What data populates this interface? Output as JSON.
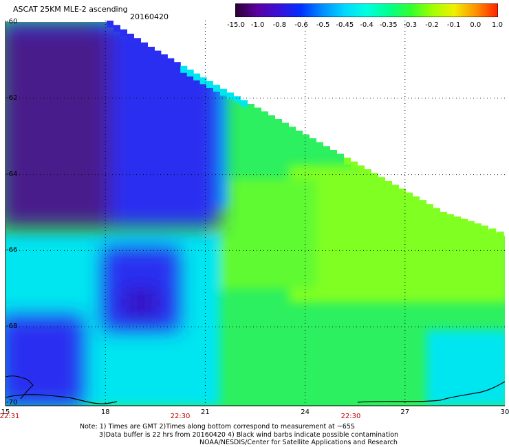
{
  "header": {
    "title": "ASCAT 25KM MLE-2 ascending",
    "date": "20160420"
  },
  "colorbar": {
    "labels": [
      "-15.0",
      "-1.0",
      "-0.8",
      "-0.6",
      "-0.5",
      "-0.45",
      "-0.4",
      "-0.35",
      "-0.3",
      "-0.2",
      "-0.1",
      "0.0",
      "1.0"
    ],
    "colors": [
      "#2a0030",
      "#5a00a0",
      "#3a10d8",
      "#0030ff",
      "#0090ff",
      "#00d8ff",
      "#00ffe0",
      "#00ff90",
      "#30ff30",
      "#a0ff00",
      "#f0f000",
      "#ff9000",
      "#ff2000"
    ]
  },
  "map": {
    "lat_labels": [
      "-60",
      "-62",
      "-64",
      "-66",
      "-68",
      "-70"
    ],
    "lon_labels": [
      "15",
      "18",
      "21",
      "24",
      "27",
      "30"
    ],
    "time_labels": [
      "22:31",
      "22:30",
      "22:30"
    ],
    "colors": {
      "deep_purple": "#4a1a8c",
      "blue": "#2a2ef0",
      "cyan": "#00e6f0",
      "green": "#2cf060",
      "lime": "#80ff20",
      "coast": "#000000",
      "missing": "#ffffff"
    }
  },
  "notes": {
    "line1": "Note: 1) Times are GMT 2)Times along bottom correspond to measurement at ~65S",
    "line2": "3)Data buffer is 22 hrs from 20160420 4) Black wind barbs indicate possible contamination",
    "line3": "NOAA/NESDIS/Center for Satellite Applications and Research"
  }
}
